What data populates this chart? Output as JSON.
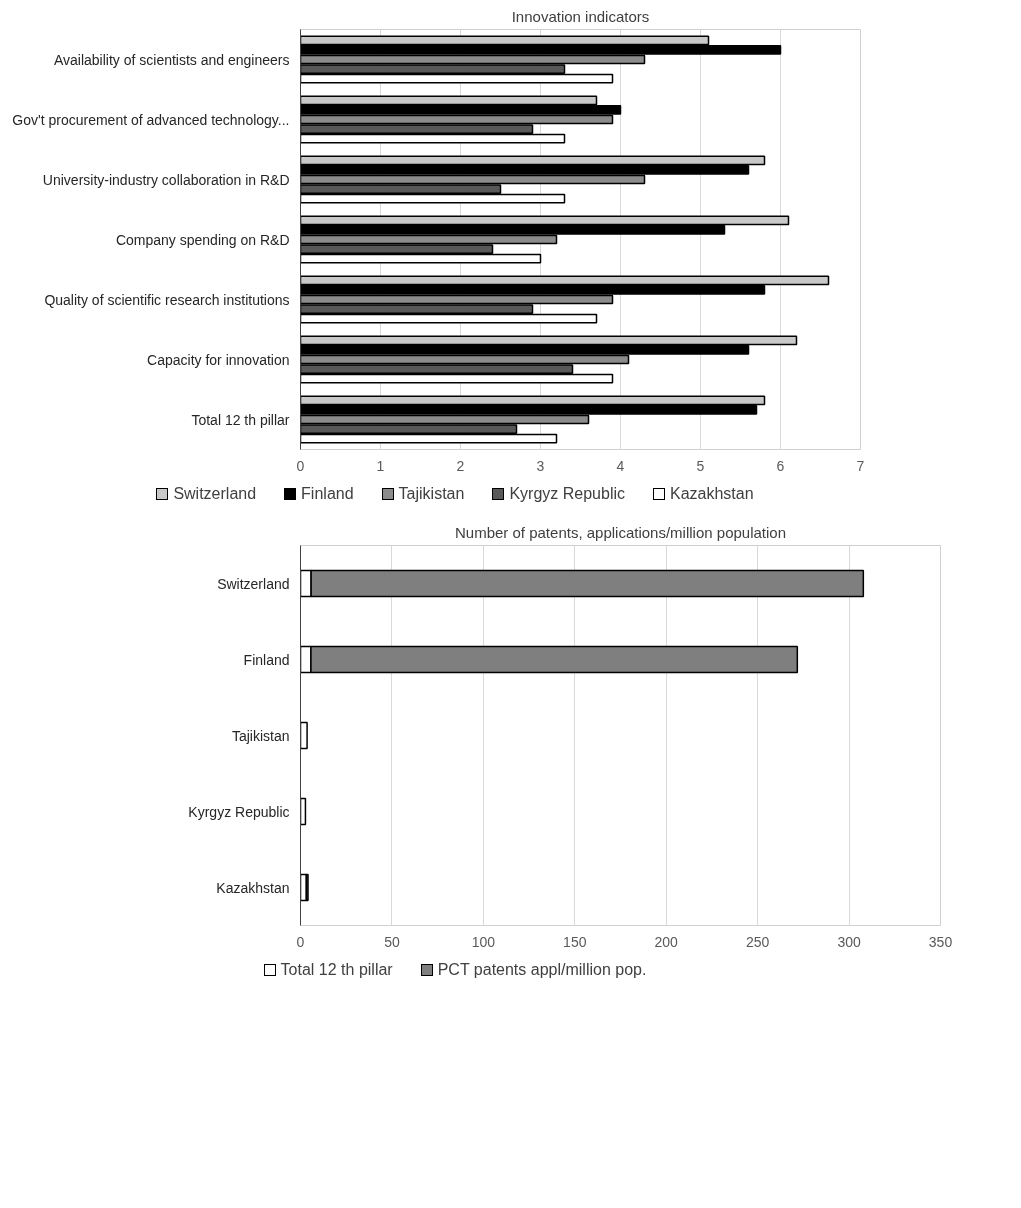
{
  "chart_data": [
    {
      "type": "bar",
      "orientation": "horizontal",
      "title": "Innovation indicators",
      "categories": [
        "Availability of scientists and engineers",
        "Gov't procurement of advanced technology...",
        "University-industry collaboration in R&D",
        "Company spending on R&D",
        "Quality of scientific research institutions",
        "Capacity for innovation",
        "Total 12 th pillar"
      ],
      "series": [
        {
          "name": "Switzerland",
          "color": "#c8c8c8",
          "values": [
            5.1,
            3.7,
            5.8,
            6.1,
            6.6,
            6.2,
            5.8
          ]
        },
        {
          "name": "Finland",
          "color": "#000000",
          "values": [
            6.0,
            4.0,
            5.6,
            5.3,
            5.8,
            5.6,
            5.7
          ]
        },
        {
          "name": "Tajikistan",
          "color": "#8c8c8c",
          "values": [
            4.3,
            3.9,
            4.3,
            3.2,
            3.9,
            4.1,
            3.6
          ]
        },
        {
          "name": "Kyrgyz Republic",
          "color": "#595959",
          "values": [
            3.3,
            2.9,
            2.5,
            2.4,
            2.9,
            3.4,
            2.7
          ]
        },
        {
          "name": "Kazakhstan",
          "color": "#ffffff",
          "values": [
            3.9,
            3.3,
            3.3,
            3.0,
            3.7,
            3.9,
            3.2
          ]
        }
      ],
      "xlim": [
        0,
        7
      ],
      "xticks": [
        0,
        1,
        2,
        3,
        4,
        5,
        6,
        7
      ],
      "grid": "x",
      "legend": "bottom"
    },
    {
      "type": "bar",
      "orientation": "horizontal",
      "stacked": true,
      "title": "Number of patents, applications/million population",
      "categories": [
        "Switzerland",
        "Finland",
        "Tajikistan",
        "Kyrgyz Republic",
        "Kazakhstan"
      ],
      "series": [
        {
          "name": "Total 12 th pillar",
          "color": "#ffffff",
          "values": [
            5.8,
            5.7,
            3.6,
            2.7,
            3.2
          ]
        },
        {
          "name": "PCT patents appl/million pop.",
          "color": "#7f7f7f",
          "values": [
            302,
            266,
            0,
            0,
            0.9
          ]
        }
      ],
      "xlim": [
        0,
        350
      ],
      "xticks": [
        0,
        50,
        100,
        150,
        200,
        250,
        300,
        350
      ],
      "grid": "x",
      "legend": "bottom"
    }
  ]
}
